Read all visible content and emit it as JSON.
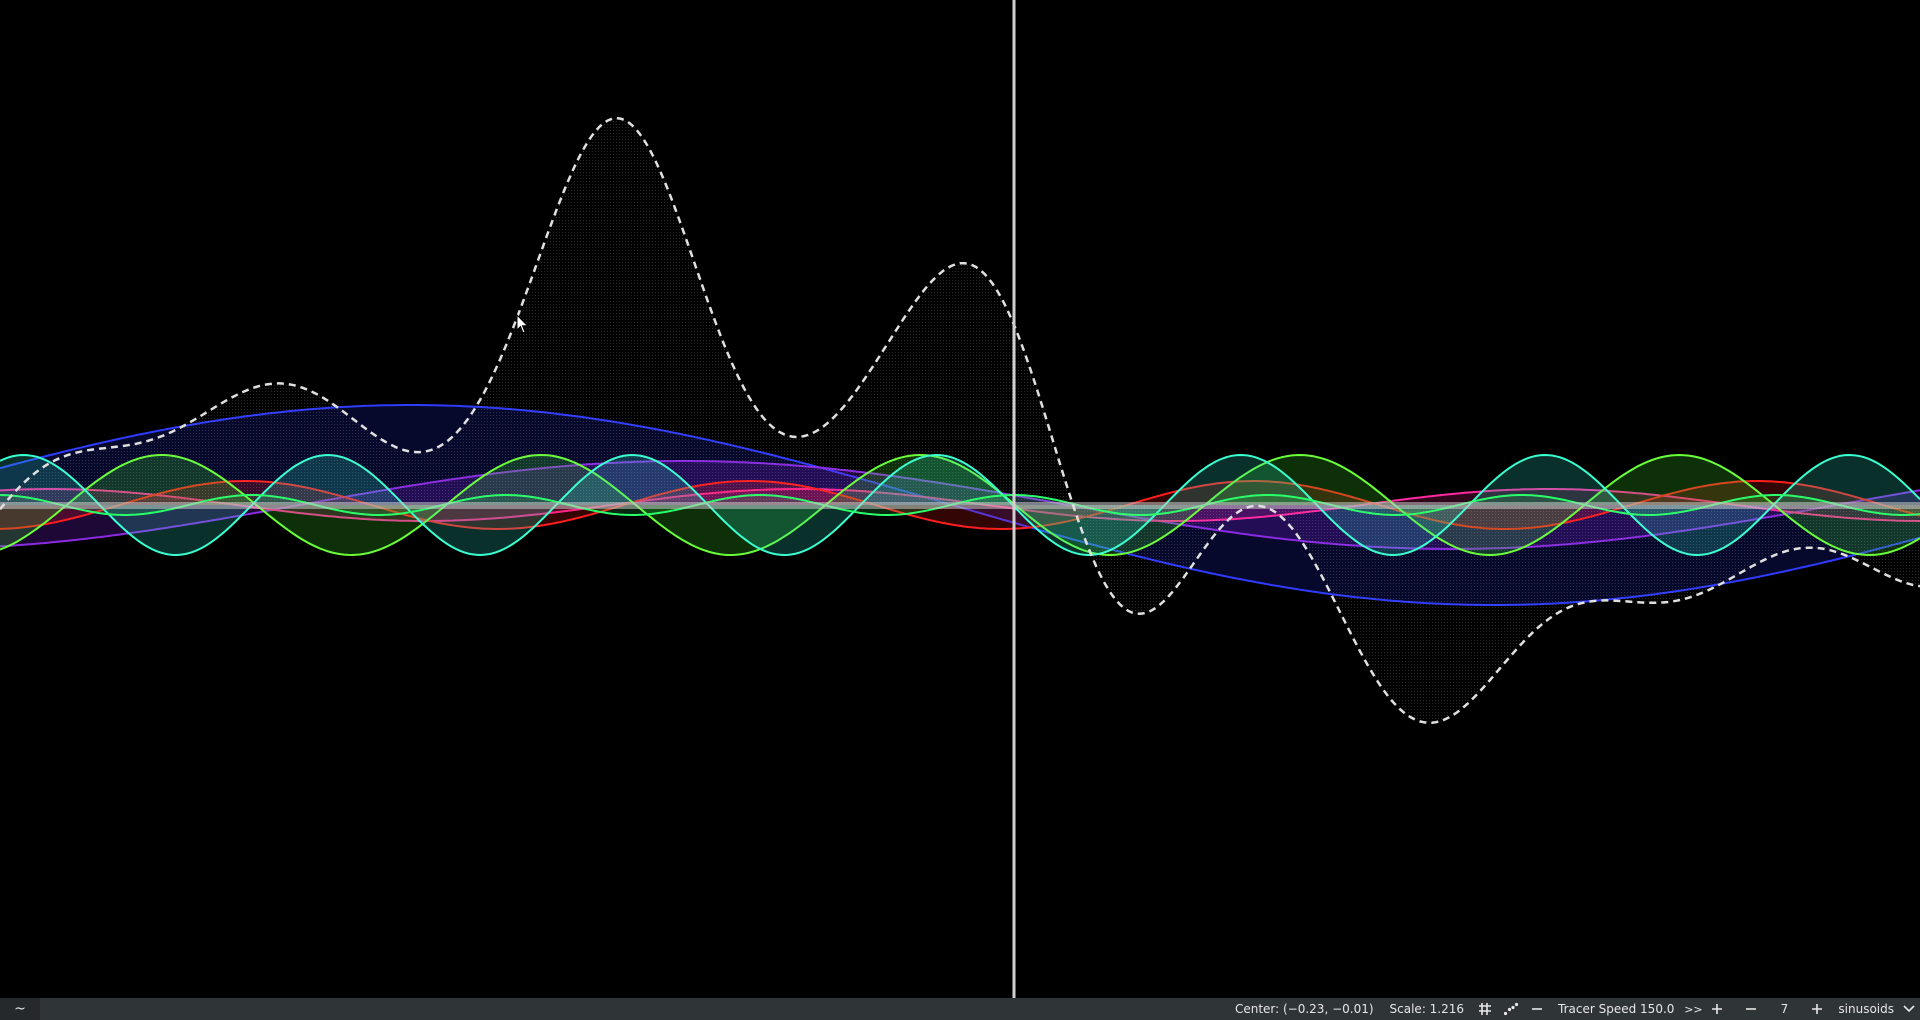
{
  "status": {
    "left_icon": "~",
    "center_label": "Center: (−0.23, −0.01)",
    "scale_label": "Scale: 1.216",
    "tracer_label": "Tracer Speed 150.0",
    "fast_forward_label": ">>",
    "count_value": "7",
    "mode_label": "sinusoids"
  },
  "icons": {
    "grid": "grid-icon",
    "scatter": "scatter-icon",
    "minus": "minus-icon",
    "plus": "plus-icon",
    "chevron": "chevron-down-icon"
  },
  "colors": {
    "background": "#000000",
    "statusbar": "#2f3437",
    "sum_curve": "#e8e8e8",
    "tracer_line": "#d0d0d0"
  },
  "plot": {
    "tracer_x": 0.0,
    "sum_stroke": "#e0e0e0",
    "sum_fill": "rgba(180,180,180,0.16)",
    "x_range": [
      -4.3,
      3.55
    ],
    "y_range": [
      -2.0,
      2.05
    ],
    "waves": [
      {
        "amp": 0.5,
        "k": 0.71,
        "phase": 1.75,
        "stroke": "#2f3bff",
        "fill": "rgba(30,40,200,0.22)"
      },
      {
        "amp": 0.22,
        "k": 1.0,
        "phase": 1.35,
        "stroke": "#8a2be2",
        "fill": "rgba(120,30,210,0.25)"
      },
      {
        "amp": 0.08,
        "k": 2.05,
        "phase": 1.8,
        "stroke": "#ff2aa0",
        "fill": "rgba(255,40,160,0.18)"
      },
      {
        "amp": 0.12,
        "k": 3.05,
        "phase": 3.3,
        "stroke": "#ff1e1e",
        "fill": "rgba(255,30,30,0.2)"
      },
      {
        "amp": 0.25,
        "k": 4.05,
        "phase": 1.55,
        "stroke": "#6aff3a",
        "fill": "rgba(60,220,40,0.22)"
      },
      {
        "amp": 0.25,
        "k": 5.05,
        "phase": 1.6,
        "stroke": "#3affd0",
        "fill": "rgba(40,220,190,0.22)"
      },
      {
        "amp": 0.05,
        "k": 6.05,
        "phase": 0.0,
        "stroke": "#2aff6a",
        "fill": "rgba(40,255,100,0.15)"
      }
    ],
    "sum_peaks": [
      {
        "x": -1.6,
        "y": 1.05,
        "w": 0.42
      },
      {
        "x": 0.0,
        "y": 1.03,
        "w": 0.42
      }
    ]
  }
}
